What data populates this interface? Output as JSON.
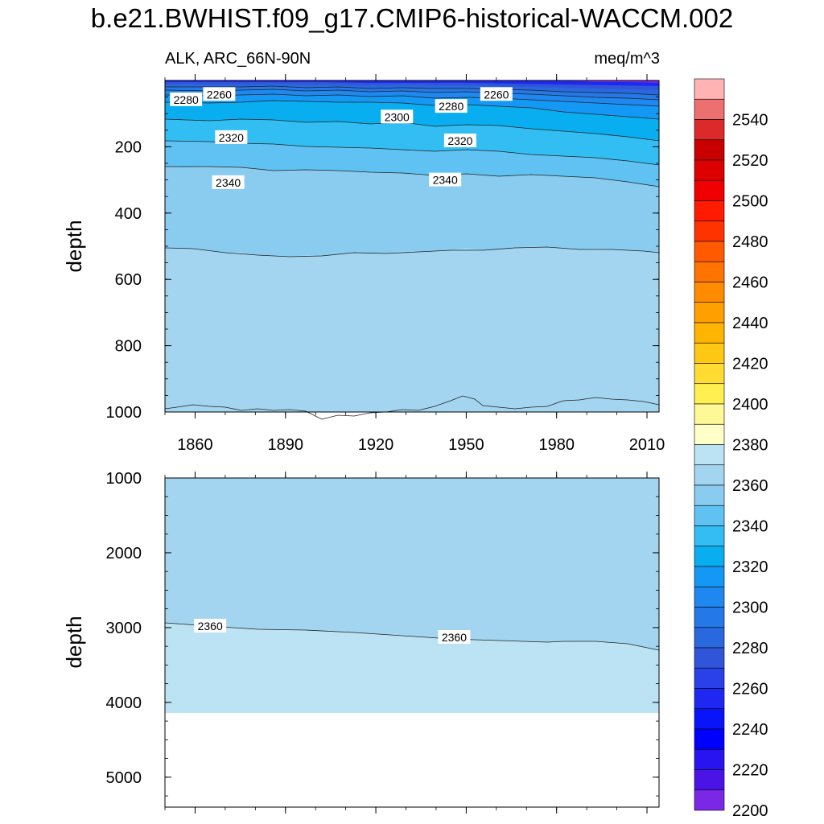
{
  "title": "b.e21.BWHIST.f09_g17.CMIP6-historical-WACCM.002",
  "left_label": "ALK, ARC_66N-90N",
  "right_label": "meq/m^3",
  "chart_data": [
    {
      "type": "contour",
      "name": "upper-panel",
      "x": {
        "range": [
          1850,
          2014
        ],
        "ticks": [
          1860,
          1890,
          1920,
          1950,
          1980,
          2010
        ]
      },
      "y": {
        "label": "depth",
        "range": [
          0,
          1000
        ],
        "inverted": true,
        "ticks": [
          200,
          400,
          600,
          800,
          1000
        ]
      },
      "contour_labels": [
        {
          "text": "2260",
          "x": 1868,
          "y": 42
        },
        {
          "text": "2280",
          "x": 1857,
          "y": 58
        },
        {
          "text": "2260",
          "x": 1960,
          "y": 42
        },
        {
          "text": "2280",
          "x": 1945,
          "y": 78
        },
        {
          "text": "2300",
          "x": 1927,
          "y": 110
        },
        {
          "text": "2320",
          "x": 1872,
          "y": 172
        },
        {
          "text": "2320",
          "x": 1948,
          "y": 182
        },
        {
          "text": "2340",
          "x": 1871,
          "y": 308
        },
        {
          "text": "2340",
          "x": 1943,
          "y": 300
        }
      ]
    },
    {
      "type": "contour",
      "name": "lower-panel",
      "x": {
        "range": [
          1850,
          2014
        ],
        "ticks": [
          1860,
          1890,
          1920,
          1950,
          1980,
          2010
        ]
      },
      "y": {
        "label": "depth",
        "range": [
          1000,
          5400
        ],
        "inverted": true,
        "ticks": [
          1000,
          2000,
          3000,
          4000,
          5000
        ]
      },
      "contour_labels": [
        {
          "text": "2360",
          "x": 1865,
          "y": 2980
        },
        {
          "text": "2360",
          "x": 1946,
          "y": 3130
        }
      ],
      "data_bottom_depth": 4120
    }
  ],
  "colorbar": {
    "labels": [
      "2540",
      "2520",
      "2500",
      "2480",
      "2460",
      "2440",
      "2420",
      "2400",
      "2380",
      "2360",
      "2340",
      "2320",
      "2300",
      "2280",
      "2260",
      "2240",
      "2220",
      "2200"
    ],
    "colors": [
      "#FFB3B3",
      "#EC7070",
      "#DC2A2A",
      "#C80000",
      "#DC0000",
      "#F00000",
      "#FF1A00",
      "#FF3300",
      "#FF5A00",
      "#FF7300",
      "#FF8C00",
      "#FFA000",
      "#FFB400",
      "#FFC814",
      "#FFDC32",
      "#FFF050",
      "#FFF896",
      "#FFFFC8",
      "#BCE3F3",
      "#A3D5F0",
      "#8ACCEF",
      "#60C2F2",
      "#33BEF3",
      "#08AEEF",
      "#1498F5",
      "#1E88F0",
      "#2478E8",
      "#2A68DF",
      "#3055D8",
      "#2A40E8",
      "#1E28F2",
      "#0A14FA",
      "#0000FF",
      "#2814F0",
      "#4B14E6",
      "#7A28E6"
    ]
  }
}
